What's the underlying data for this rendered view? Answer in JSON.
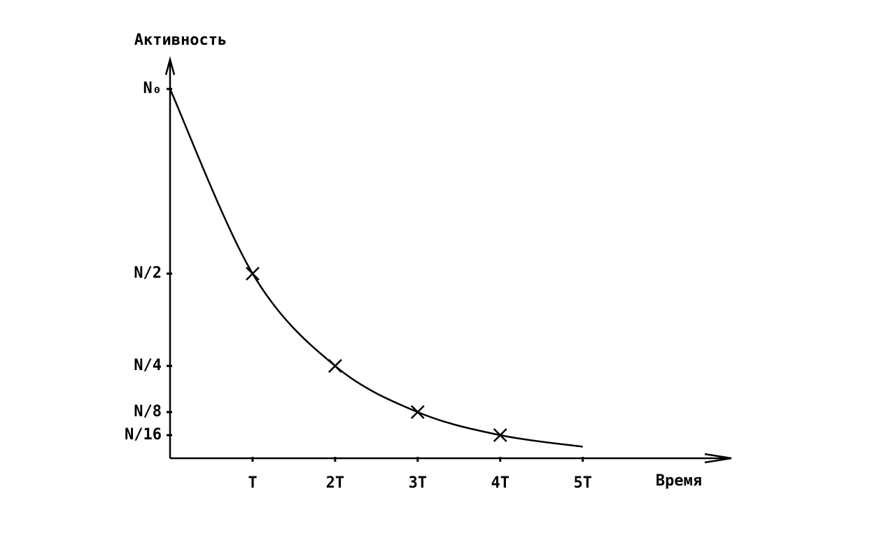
{
  "chart_data": {
    "type": "line",
    "y_label": "Активность",
    "x_label": "Время",
    "x": [
      0,
      1,
      2,
      3,
      4,
      5
    ],
    "series": [
      {
        "color": "#000000",
        "values": [
          1,
          0.5,
          0.25,
          0.125,
          0.0625,
          0.03125
        ]
      }
    ],
    "xlim": [
      0,
      6.8
    ],
    "ylim": [
      0,
      1.08
    ],
    "xticks": [
      {
        "value": 1,
        "label": "T"
      },
      {
        "value": 2,
        "label": "2T"
      },
      {
        "value": 3,
        "label": "3T"
      },
      {
        "value": 4,
        "label": "4T"
      },
      {
        "value": 5,
        "label": "5T"
      }
    ],
    "yticks": [
      {
        "value": 1,
        "label": "N₀"
      },
      {
        "value": 0.5,
        "label": "N/2"
      },
      {
        "value": 0.25,
        "label": "N/4"
      },
      {
        "value": 0.125,
        "label": "N/8"
      },
      {
        "value": 0.0625,
        "label": "N/16"
      }
    ],
    "grid": false
  }
}
